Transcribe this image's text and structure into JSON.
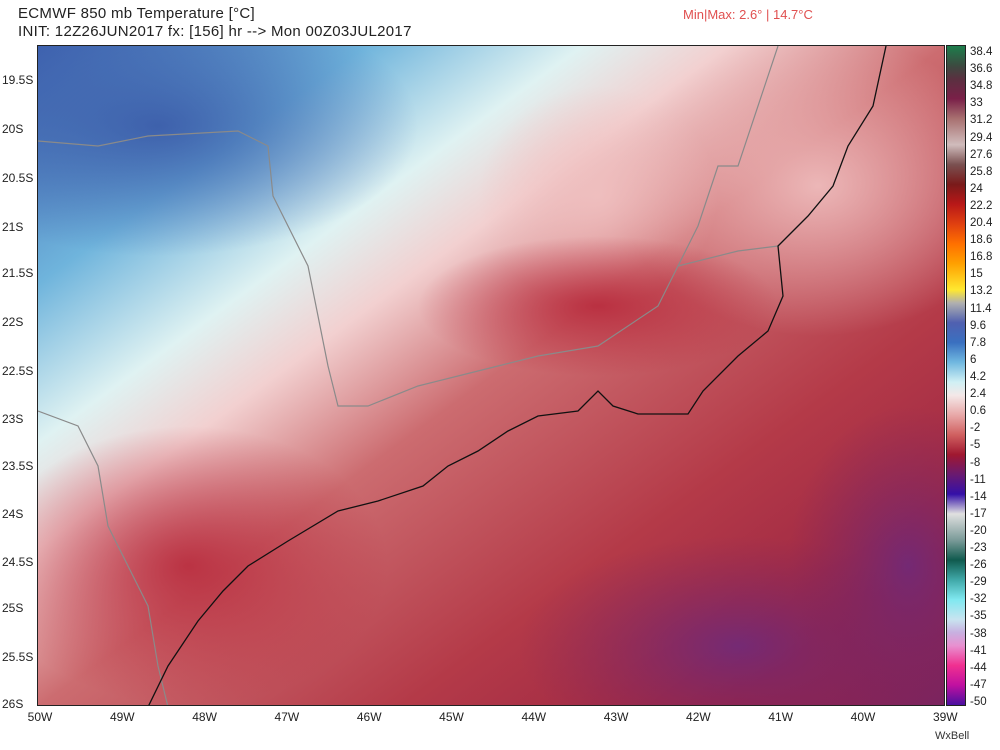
{
  "header": {
    "title": "ECMWF 850 mb Temperature [°C]",
    "init_line": "INIT: 12Z26JUN2017 fx: [156] hr --> Mon 00Z03JUL2017",
    "minmax": "Min|Max: 2.6° | 14.7°C",
    "minmax_color": "#e05050"
  },
  "map": {
    "lat_labels": [
      "19.5S",
      "20S",
      "20.5S",
      "21S",
      "21.5S",
      "22S",
      "22.5S",
      "23S",
      "23.5S",
      "24S",
      "24.5S",
      "25S",
      "25.5S",
      "26S"
    ],
    "lon_labels": [
      "50W",
      "49W",
      "48W",
      "47W",
      "46W",
      "45W",
      "44W",
      "43W",
      "42W",
      "41W",
      "40W",
      "39W"
    ]
  },
  "colorbar": {
    "labels": [
      "38.4",
      "36.6",
      "34.8",
      "33",
      "31.2",
      "29.4",
      "27.6",
      "25.8",
      "24",
      "22.2",
      "20.4",
      "18.6",
      "16.8",
      "15",
      "13.2",
      "11.4",
      "9.6",
      "7.8",
      "6",
      "4.2",
      "2.4",
      "0.6",
      "-2",
      "-5",
      "-8",
      "-11",
      "-14",
      "-17",
      "-20",
      "-23",
      "-26",
      "-29",
      "-32",
      "-35",
      "-38",
      "-41",
      "-44",
      "-47",
      "-50"
    ]
  },
  "branding": {
    "logo": "WxBell"
  }
}
